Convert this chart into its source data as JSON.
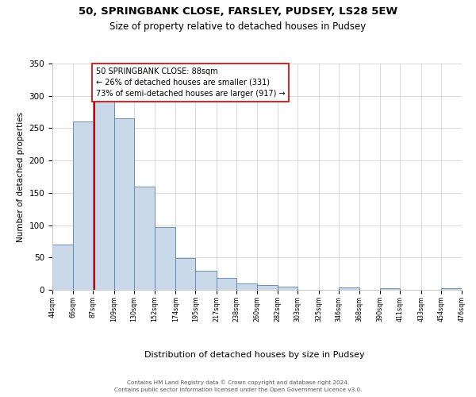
{
  "title_line1": "50, SPRINGBANK CLOSE, FARSLEY, PUDSEY, LS28 5EW",
  "title_line2": "Size of property relative to detached houses in Pudsey",
  "xlabel": "Distribution of detached houses by size in Pudsey",
  "ylabel": "Number of detached properties",
  "bar_edges": [
    44,
    66,
    87,
    109,
    130,
    152,
    174,
    195,
    217,
    238,
    260,
    282,
    303,
    325,
    346,
    368,
    390,
    411,
    433,
    454,
    476
  ],
  "bar_heights": [
    70,
    260,
    293,
    265,
    160,
    97,
    49,
    29,
    19,
    10,
    7,
    5,
    0,
    0,
    4,
    0,
    3,
    0,
    0,
    3
  ],
  "bar_color": "#c9d9ea",
  "bar_edge_color": "#5a82a8",
  "ylim": [
    0,
    350
  ],
  "yticks": [
    0,
    50,
    100,
    150,
    200,
    250,
    300,
    350
  ],
  "property_size": 88,
  "vline_color": "#cc0000",
  "annotation_line1": "50 SPRINGBANK CLOSE: 88sqm",
  "annotation_line2": "← 26% of detached houses are smaller (331)",
  "annotation_line3": "73% of semi-detached houses are larger (917) →",
  "annotation_box_color": "#ffffff",
  "annotation_box_edge_color": "#cc0000",
  "footer_line1": "Contains HM Land Registry data © Crown copyright and database right 2024.",
  "footer_line2": "Contains public sector information licensed under the Open Government Licence v3.0.",
  "tick_labels": [
    "44sqm",
    "66sqm",
    "87sqm",
    "109sqm",
    "130sqm",
    "152sqm",
    "174sqm",
    "195sqm",
    "217sqm",
    "238sqm",
    "260sqm",
    "282sqm",
    "303sqm",
    "325sqm",
    "346sqm",
    "368sqm",
    "390sqm",
    "411sqm",
    "433sqm",
    "454sqm",
    "476sqm"
  ],
  "background_color": "#ffffff",
  "grid_color": "#cccccc",
  "title1_fontsize": 9.5,
  "title2_fontsize": 8.5,
  "ylabel_fontsize": 7.5,
  "xlabel_fontsize": 8,
  "tick_fontsize": 5.8,
  "ytick_fontsize": 7.5,
  "annot_fontsize": 7,
  "footer_fontsize": 5.2
}
